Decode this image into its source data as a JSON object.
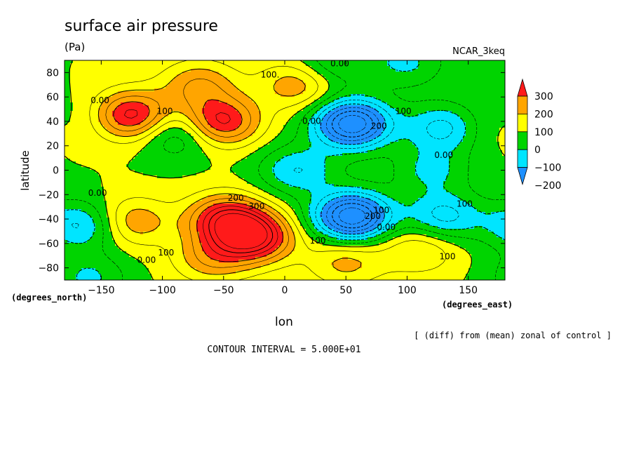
{
  "chart_data": {
    "type": "heatmap",
    "title": "surface air pressure",
    "units": "(Pa)",
    "model": "NCAR_3keq",
    "xlabel": "lon",
    "ylabel": "latitude",
    "x_units": "(degrees_east)",
    "y_units": "(degrees_north)",
    "xlim": [
      -180,
      180
    ],
    "ylim": [
      -90,
      90
    ],
    "x_ticks": [
      -150,
      -100,
      -50,
      0,
      50,
      100,
      150
    ],
    "y_ticks": [
      80,
      60,
      40,
      20,
      0,
      -20,
      -40,
      -60,
      -80
    ],
    "note": "[ (diff) from (mean) zonal of control ]",
    "contour_interval": "CONTOUR INTERVAL = 5.000E+01",
    "colorbar": {
      "labels": [
        "300",
        "200",
        "100",
        "0",
        "−100",
        "−200"
      ],
      "levels": [
        {
          "from": 200,
          "to": 300,
          "color": "#ff1a1a"
        },
        {
          "from": 100,
          "to": 200,
          "color": "#ffa500"
        },
        {
          "from": 0,
          "to": 100,
          "color": "#ffff00"
        },
        {
          "from": -100,
          "to": 0,
          "color": "#00d400"
        },
        {
          "from": -200,
          "to": -100,
          "color": "#00e5ff"
        },
        {
          "from": -300,
          "to": -200,
          "color": "#1e90ff"
        }
      ]
    },
    "field_centers": [
      {
        "lon": -125,
        "lat": 45,
        "value": 280
      },
      {
        "lon": -52,
        "lat": 40,
        "value": 270
      },
      {
        "lon": -70,
        "lat": 70,
        "value": 150
      },
      {
        "lon": 10,
        "lat": 70,
        "value": 140
      },
      {
        "lon": -25,
        "lat": -55,
        "value": 330
      },
      {
        "lon": -48,
        "lat": -40,
        "value": 280
      },
      {
        "lon": -125,
        "lat": -42,
        "value": 150
      },
      {
        "lon": -60,
        "lat": -72,
        "value": 140
      },
      {
        "lon": 50,
        "lat": -75,
        "value": 120
      },
      {
        "lon": 110,
        "lat": -65,
        "value": 110
      },
      {
        "lon": 175,
        "lat": 38,
        "value": 110
      },
      {
        "lon": 55,
        "lat": 38,
        "value": -400
      },
      {
        "lon": 55,
        "lat": -38,
        "value": -400
      },
      {
        "lon": -165,
        "lat": -45,
        "value": -170
      },
      {
        "lon": 130,
        "lat": 35,
        "value": -170
      },
      {
        "lon": 130,
        "lat": -38,
        "value": -170
      },
      {
        "lon": 10,
        "lat": 0,
        "value": -150
      },
      {
        "lon": -88,
        "lat": 30,
        "value": -130
      },
      {
        "lon": 120,
        "lat": 0,
        "value": -110
      },
      {
        "lon": -175,
        "lat": 40,
        "value": -110
      },
      {
        "lon": 40,
        "lat": 88,
        "value": -110
      },
      {
        "lon": 100,
        "lat": 88,
        "value": -110
      },
      {
        "lon": -160,
        "lat": -88,
        "value": -110
      }
    ],
    "contour_labels": [
      {
        "text": "0.00",
        "lon": 45,
        "lat": 85
      },
      {
        "text": "100.",
        "lon": -12,
        "lat": 76
      },
      {
        "text": "0.00",
        "lon": -151,
        "lat": 55
      },
      {
        "text": "100",
        "lon": -98,
        "lat": 46
      },
      {
        "text": "0.00",
        "lon": 22,
        "lat": 38
      },
      {
        "text": "100",
        "lon": 97,
        "lat": 46
      },
      {
        "text": "200",
        "lon": 77,
        "lat": 34
      },
      {
        "text": "0.00",
        "lon": 130,
        "lat": 10
      },
      {
        "text": "0.00",
        "lon": -153,
        "lat": -21
      },
      {
        "text": "200",
        "lon": -40,
        "lat": -25
      },
      {
        "text": "300",
        "lon": -23,
        "lat": -32
      },
      {
        "text": "200",
        "lon": 72,
        "lat": -40
      },
      {
        "text": "100",
        "lon": 79,
        "lat": -35
      },
      {
        "text": "0.00",
        "lon": 83,
        "lat": -49
      },
      {
        "text": "100",
        "lon": 147,
        "lat": -30
      },
      {
        "text": "100",
        "lon": 27,
        "lat": -60
      },
      {
        "text": "100",
        "lon": -97,
        "lat": -70
      },
      {
        "text": "0.00",
        "lon": -113,
        "lat": -76
      },
      {
        "text": "100",
        "lon": 133,
        "lat": -73
      }
    ]
  }
}
